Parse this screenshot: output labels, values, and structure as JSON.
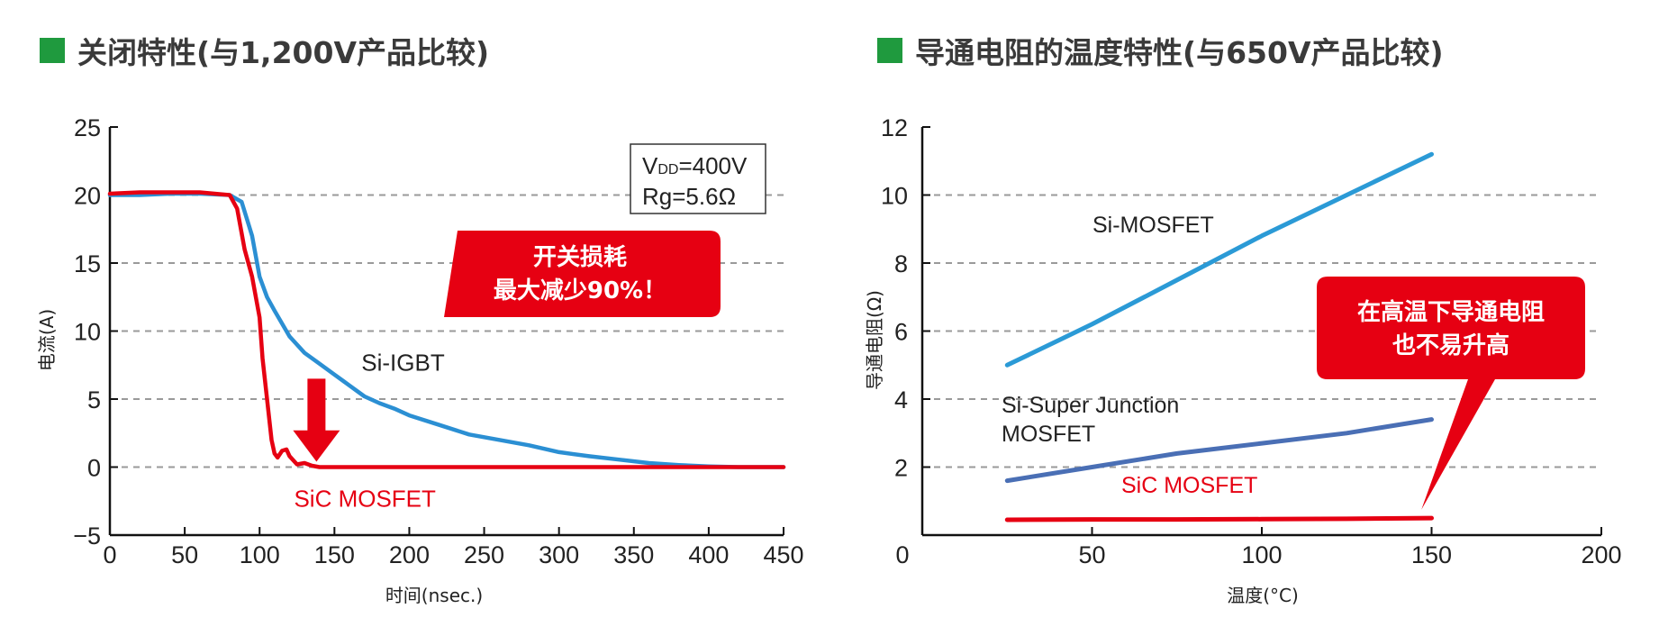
{
  "chart_data": [
    {
      "type": "line",
      "title": "关闭特性(与1,200V产品比较)",
      "xlabel": "时间(nsec.)",
      "ylabel": "电流(A)",
      "xlim": [
        0,
        450
      ],
      "ylim": [
        -5,
        25
      ],
      "xticks": [
        "0",
        "50",
        "100",
        "150",
        "200",
        "250",
        "300",
        "350",
        "400",
        "450"
      ],
      "yticks": [
        "25",
        "20",
        "15",
        "10",
        "5",
        "0",
        "−5"
      ],
      "grid": "horizontal-dashed",
      "conditions": [
        "V",
        "DD",
        "=400V",
        "Rg=5.6Ω"
      ],
      "callout": [
        "开关损耗",
        "最大减少90%！"
      ],
      "series": [
        {
          "name": "Si-IGBT",
          "color": "#2b8fd3",
          "x": [
            0,
            20,
            40,
            60,
            80,
            88,
            95,
            100,
            105,
            110,
            120,
            130,
            140,
            150,
            160,
            170,
            180,
            190,
            200,
            220,
            240,
            260,
            280,
            300,
            320,
            340,
            360,
            380,
            400,
            420,
            450
          ],
          "y": [
            20,
            20,
            20.1,
            20.1,
            20,
            19.5,
            17,
            14,
            12.5,
            11.5,
            9.6,
            8.4,
            7.6,
            6.8,
            6,
            5.2,
            4.7,
            4.3,
            3.8,
            3.1,
            2.4,
            2,
            1.6,
            1.1,
            0.8,
            0.55,
            0.3,
            0.15,
            0.05,
            0,
            0
          ]
        },
        {
          "name": "SiC MOSFET",
          "color": "#e60012",
          "x": [
            0,
            20,
            40,
            60,
            80,
            85,
            90,
            95,
            100,
            102,
            105,
            108,
            110,
            112,
            115,
            118,
            120,
            125,
            130,
            135,
            140,
            150,
            200,
            300,
            400,
            450
          ],
          "y": [
            20.1,
            20.2,
            20.2,
            20.2,
            20,
            19,
            16,
            14,
            11,
            8,
            5,
            2,
            1,
            0.7,
            1.2,
            1.3,
            0.8,
            0.2,
            0.3,
            0.1,
            0,
            0,
            0,
            0,
            0,
            0
          ]
        }
      ]
    },
    {
      "type": "line",
      "title": "导通电阻的温度特性(与650V产品比较)",
      "xlabel": "温度(°C)",
      "ylabel": "导通电阻(Ω)",
      "xlim": [
        0,
        200
      ],
      "ylim": [
        0,
        12
      ],
      "xticks": [
        "0",
        "50",
        "100",
        "150",
        "200"
      ],
      "yticks": [
        "12",
        "10",
        "8",
        "6",
        "4",
        "2"
      ],
      "grid": "horizontal-dashed",
      "callout": [
        "在高温下导通电阻",
        "也不易升高"
      ],
      "series": [
        {
          "name": "Si-MOSFET",
          "label": [
            "Si-MOSFET"
          ],
          "color": "#2b9ad6",
          "x": [
            25,
            50,
            75,
            100,
            125,
            150
          ],
          "y": [
            5.0,
            6.2,
            7.5,
            8.8,
            10.0,
            11.2
          ]
        },
        {
          "name": "Si-Super Junction MOSFET",
          "label": [
            "Si-Super Junction",
            "MOSFET"
          ],
          "color": "#4a6fb5",
          "x": [
            25,
            50,
            75,
            100,
            125,
            150
          ],
          "y": [
            1.6,
            2.0,
            2.4,
            2.7,
            3.0,
            3.4
          ]
        },
        {
          "name": "SiC MOSFET",
          "label": [
            "SiC MOSFET"
          ],
          "color": "#e60012",
          "x": [
            25,
            50,
            75,
            100,
            125,
            150
          ],
          "y": [
            0.45,
            0.46,
            0.46,
            0.47,
            0.48,
            0.5
          ]
        }
      ]
    }
  ]
}
